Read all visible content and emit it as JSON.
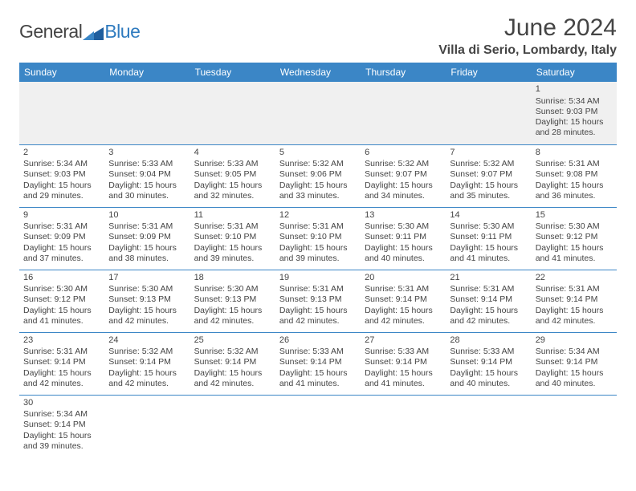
{
  "logo": {
    "text1": "General",
    "text2": "Blue",
    "shape_color": "#1f5e9e"
  },
  "title": "June 2024",
  "location": "Villa di Serio, Lombardy, Italy",
  "header_bg": "#3b86c6",
  "weekdays": [
    "Sunday",
    "Monday",
    "Tuesday",
    "Wednesday",
    "Thursday",
    "Friday",
    "Saturday"
  ],
  "weeks": [
    [
      null,
      null,
      null,
      null,
      null,
      null,
      {
        "d": "1",
        "sr": "Sunrise: 5:34 AM",
        "ss": "Sunset: 9:03 PM",
        "dl1": "Daylight: 15 hours",
        "dl2": "and 28 minutes."
      }
    ],
    [
      {
        "d": "2",
        "sr": "Sunrise: 5:34 AM",
        "ss": "Sunset: 9:03 PM",
        "dl1": "Daylight: 15 hours",
        "dl2": "and 29 minutes."
      },
      {
        "d": "3",
        "sr": "Sunrise: 5:33 AM",
        "ss": "Sunset: 9:04 PM",
        "dl1": "Daylight: 15 hours",
        "dl2": "and 30 minutes."
      },
      {
        "d": "4",
        "sr": "Sunrise: 5:33 AM",
        "ss": "Sunset: 9:05 PM",
        "dl1": "Daylight: 15 hours",
        "dl2": "and 32 minutes."
      },
      {
        "d": "5",
        "sr": "Sunrise: 5:32 AM",
        "ss": "Sunset: 9:06 PM",
        "dl1": "Daylight: 15 hours",
        "dl2": "and 33 minutes."
      },
      {
        "d": "6",
        "sr": "Sunrise: 5:32 AM",
        "ss": "Sunset: 9:07 PM",
        "dl1": "Daylight: 15 hours",
        "dl2": "and 34 minutes."
      },
      {
        "d": "7",
        "sr": "Sunrise: 5:32 AM",
        "ss": "Sunset: 9:07 PM",
        "dl1": "Daylight: 15 hours",
        "dl2": "and 35 minutes."
      },
      {
        "d": "8",
        "sr": "Sunrise: 5:31 AM",
        "ss": "Sunset: 9:08 PM",
        "dl1": "Daylight: 15 hours",
        "dl2": "and 36 minutes."
      }
    ],
    [
      {
        "d": "9",
        "sr": "Sunrise: 5:31 AM",
        "ss": "Sunset: 9:09 PM",
        "dl1": "Daylight: 15 hours",
        "dl2": "and 37 minutes."
      },
      {
        "d": "10",
        "sr": "Sunrise: 5:31 AM",
        "ss": "Sunset: 9:09 PM",
        "dl1": "Daylight: 15 hours",
        "dl2": "and 38 minutes."
      },
      {
        "d": "11",
        "sr": "Sunrise: 5:31 AM",
        "ss": "Sunset: 9:10 PM",
        "dl1": "Daylight: 15 hours",
        "dl2": "and 39 minutes."
      },
      {
        "d": "12",
        "sr": "Sunrise: 5:31 AM",
        "ss": "Sunset: 9:10 PM",
        "dl1": "Daylight: 15 hours",
        "dl2": "and 39 minutes."
      },
      {
        "d": "13",
        "sr": "Sunrise: 5:30 AM",
        "ss": "Sunset: 9:11 PM",
        "dl1": "Daylight: 15 hours",
        "dl2": "and 40 minutes."
      },
      {
        "d": "14",
        "sr": "Sunrise: 5:30 AM",
        "ss": "Sunset: 9:11 PM",
        "dl1": "Daylight: 15 hours",
        "dl2": "and 41 minutes."
      },
      {
        "d": "15",
        "sr": "Sunrise: 5:30 AM",
        "ss": "Sunset: 9:12 PM",
        "dl1": "Daylight: 15 hours",
        "dl2": "and 41 minutes."
      }
    ],
    [
      {
        "d": "16",
        "sr": "Sunrise: 5:30 AM",
        "ss": "Sunset: 9:12 PM",
        "dl1": "Daylight: 15 hours",
        "dl2": "and 41 minutes."
      },
      {
        "d": "17",
        "sr": "Sunrise: 5:30 AM",
        "ss": "Sunset: 9:13 PM",
        "dl1": "Daylight: 15 hours",
        "dl2": "and 42 minutes."
      },
      {
        "d": "18",
        "sr": "Sunrise: 5:30 AM",
        "ss": "Sunset: 9:13 PM",
        "dl1": "Daylight: 15 hours",
        "dl2": "and 42 minutes."
      },
      {
        "d": "19",
        "sr": "Sunrise: 5:31 AM",
        "ss": "Sunset: 9:13 PM",
        "dl1": "Daylight: 15 hours",
        "dl2": "and 42 minutes."
      },
      {
        "d": "20",
        "sr": "Sunrise: 5:31 AM",
        "ss": "Sunset: 9:14 PM",
        "dl1": "Daylight: 15 hours",
        "dl2": "and 42 minutes."
      },
      {
        "d": "21",
        "sr": "Sunrise: 5:31 AM",
        "ss": "Sunset: 9:14 PM",
        "dl1": "Daylight: 15 hours",
        "dl2": "and 42 minutes."
      },
      {
        "d": "22",
        "sr": "Sunrise: 5:31 AM",
        "ss": "Sunset: 9:14 PM",
        "dl1": "Daylight: 15 hours",
        "dl2": "and 42 minutes."
      }
    ],
    [
      {
        "d": "23",
        "sr": "Sunrise: 5:31 AM",
        "ss": "Sunset: 9:14 PM",
        "dl1": "Daylight: 15 hours",
        "dl2": "and 42 minutes."
      },
      {
        "d": "24",
        "sr": "Sunrise: 5:32 AM",
        "ss": "Sunset: 9:14 PM",
        "dl1": "Daylight: 15 hours",
        "dl2": "and 42 minutes."
      },
      {
        "d": "25",
        "sr": "Sunrise: 5:32 AM",
        "ss": "Sunset: 9:14 PM",
        "dl1": "Daylight: 15 hours",
        "dl2": "and 42 minutes."
      },
      {
        "d": "26",
        "sr": "Sunrise: 5:33 AM",
        "ss": "Sunset: 9:14 PM",
        "dl1": "Daylight: 15 hours",
        "dl2": "and 41 minutes."
      },
      {
        "d": "27",
        "sr": "Sunrise: 5:33 AM",
        "ss": "Sunset: 9:14 PM",
        "dl1": "Daylight: 15 hours",
        "dl2": "and 41 minutes."
      },
      {
        "d": "28",
        "sr": "Sunrise: 5:33 AM",
        "ss": "Sunset: 9:14 PM",
        "dl1": "Daylight: 15 hours",
        "dl2": "and 40 minutes."
      },
      {
        "d": "29",
        "sr": "Sunrise: 5:34 AM",
        "ss": "Sunset: 9:14 PM",
        "dl1": "Daylight: 15 hours",
        "dl2": "and 40 minutes."
      }
    ],
    [
      {
        "d": "30",
        "sr": "Sunrise: 5:34 AM",
        "ss": "Sunset: 9:14 PM",
        "dl1": "Daylight: 15 hours",
        "dl2": "and 39 minutes."
      },
      null,
      null,
      null,
      null,
      null,
      null
    ]
  ]
}
